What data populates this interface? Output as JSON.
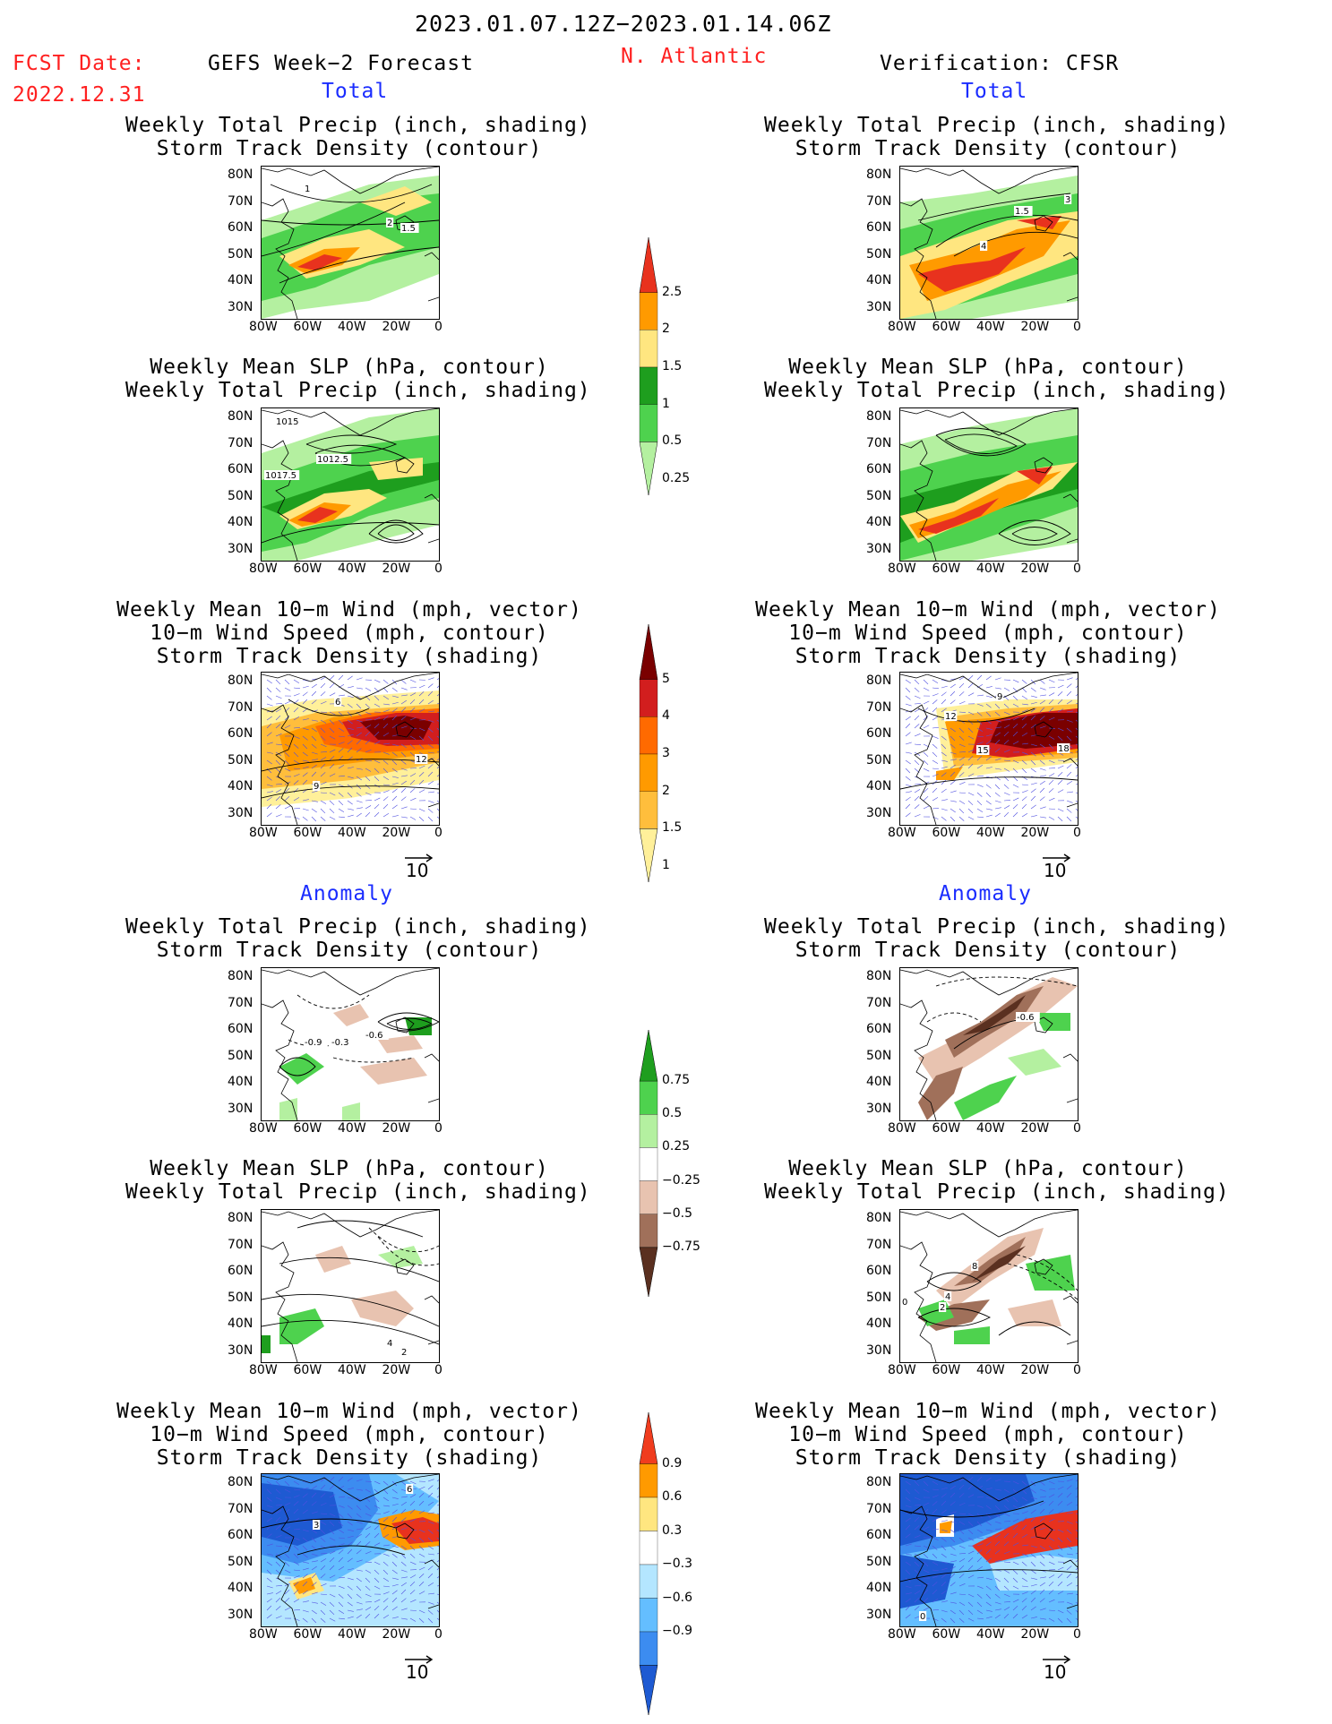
{
  "header": {
    "date_range": "2023.01.07.12Z−2023.01.14.06Z",
    "region": "N. Atlantic",
    "fcst_label": "FCST Date:",
    "fcst_date": "2022.12.31",
    "left_title": "GEFS Week−2 Forecast",
    "right_title": "Verification: CFSR"
  },
  "sections": {
    "total": "Total",
    "anomaly": "Anomaly"
  },
  "panel_titles": {
    "precip_track": [
      "Weekly Total Precip (inch, shading)",
      "Storm Track Density (contour)"
    ],
    "slp_precip": [
      "Weekly Mean SLP (hPa, contour)",
      "Weekly Total Precip (inch, shading)"
    ],
    "wind_track": [
      "Weekly Mean 10−m Wind (mph, vector)",
      "10−m Wind Speed (mph, contour)",
      "Storm Track Density (shading)"
    ]
  },
  "axes": {
    "lat_ticks": [
      "80N",
      "70N",
      "60N",
      "50N",
      "40N",
      "30N"
    ],
    "lon_ticks": [
      "80W",
      "60W",
      "40W",
      "20W",
      "0"
    ]
  },
  "vector_ref": "10",
  "colorbars": {
    "precip_total": {
      "labels": [
        "2.5",
        "2",
        "1.5",
        "1",
        "0.5",
        "0.25"
      ],
      "colors": [
        "#e8321e",
        "#ff9a00",
        "#ffe680",
        "#1e9e1e",
        "#4ed24e",
        "#b4f0a0"
      ]
    },
    "track_total": {
      "labels": [
        "5",
        "4",
        "3",
        "2",
        "1.5",
        "1"
      ],
      "colors": [
        "#7a0000",
        "#d21e1e",
        "#ff6a00",
        "#ff9a00",
        "#ffbe3c",
        "#fff09a"
      ]
    },
    "precip_anom": {
      "labels": [
        "0.75",
        "0.5",
        "0.25",
        "−0.25",
        "−0.5",
        "−0.75"
      ],
      "colors": [
        "#1e9e1e",
        "#4ed24e",
        "#b4f0a0",
        "#ffffff",
        "#e8c3b0",
        "#a0705a",
        "#5a3020"
      ]
    },
    "track_anom": {
      "labels": [
        "0.9",
        "0.6",
        "0.3",
        "−0.3",
        "−0.6",
        "−0.9"
      ],
      "colors": [
        "#f03c1e",
        "#ff9a00",
        "#ffe680",
        "#ffffff",
        "#b4e6ff",
        "#64beff",
        "#3c8cf0",
        "#1e5ad2"
      ]
    }
  },
  "contour_labels": {
    "L1": [
      "1",
      "2",
      "1.5"
    ],
    "R1": [
      "3",
      "1.5",
      "4"
    ],
    "L2": [
      "1015",
      "1012.5",
      "1017.5"
    ],
    "L3": [
      "6",
      "12",
      "9"
    ],
    "R3": [
      "9",
      "12",
      "15",
      "18"
    ],
    "L4": [
      "-0.9",
      "-0.3",
      "-0.6"
    ],
    "R4": [
      "-0.6"
    ],
    "L5": [
      "4",
      "2"
    ],
    "R5": [
      "8",
      "4",
      "2",
      "0"
    ],
    "L6": [
      "3",
      "6"
    ],
    "R6": [
      "0"
    ]
  }
}
